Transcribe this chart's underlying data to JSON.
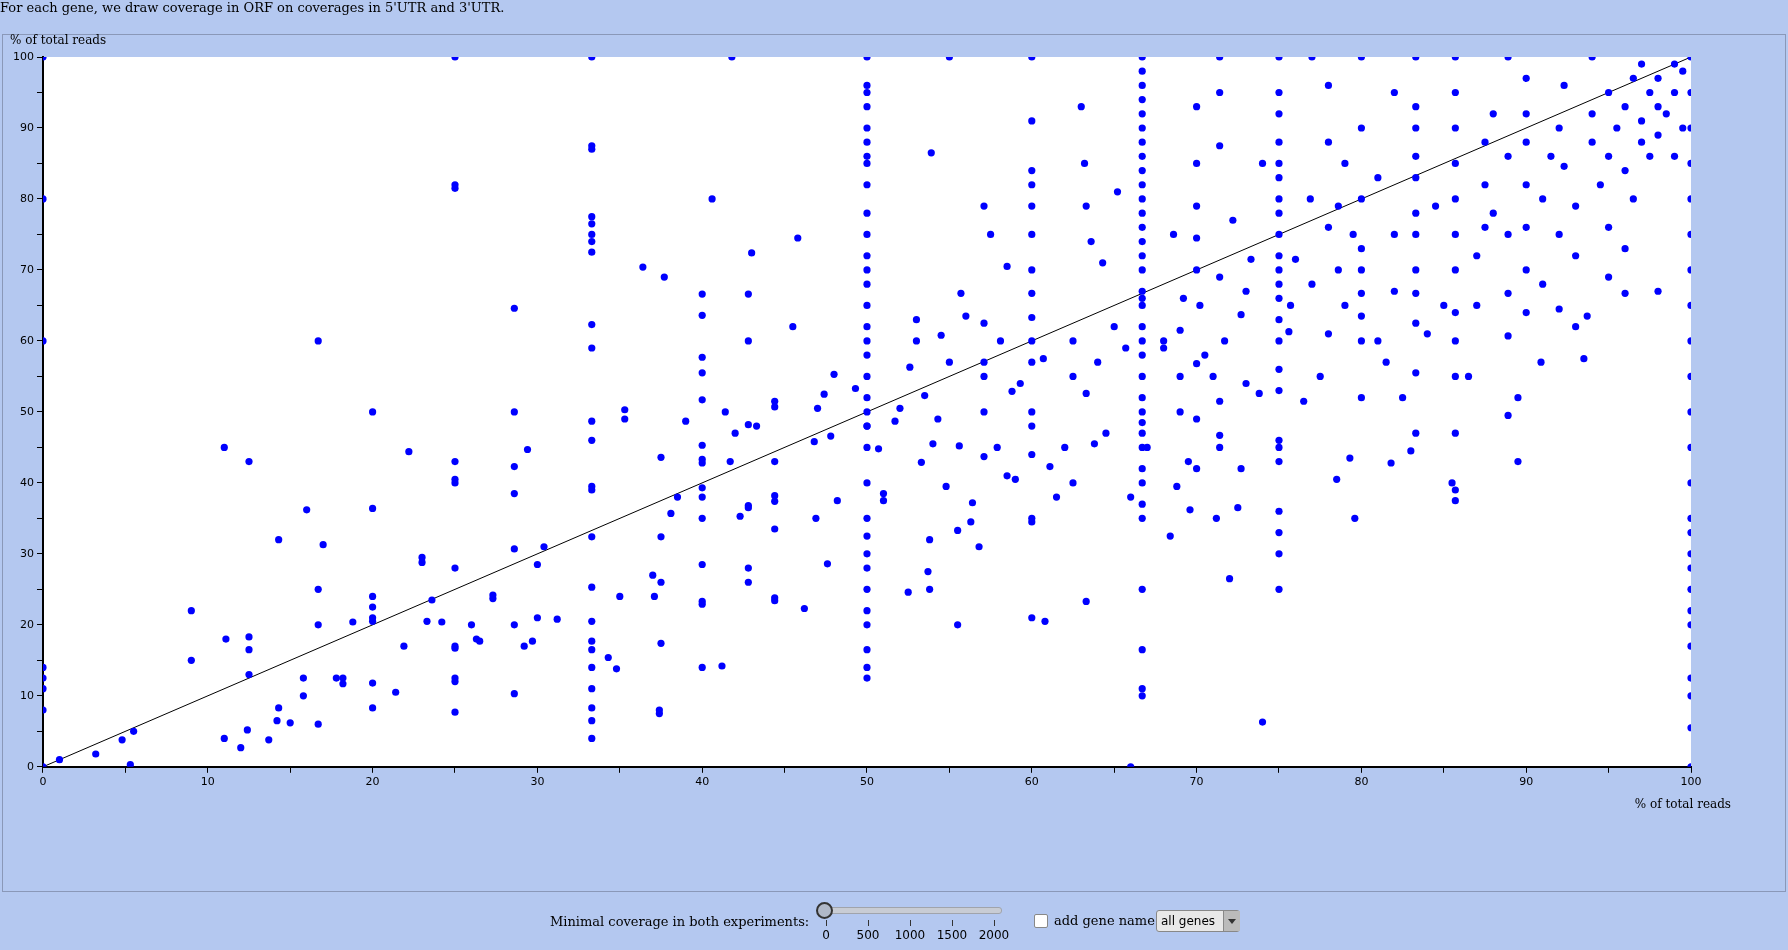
{
  "chart_data": {
    "type": "scatter",
    "title": "For each gene, we draw coverage in ORF on coverages in 5'UTR and 3'UTR.",
    "xlabel": "% of total reads",
    "ylabel": "% of total reads",
    "xlim": [
      0,
      100
    ],
    "ylim": [
      0,
      100
    ],
    "xticks": [
      0,
      {
        "value": 5,
        "label": null
      },
      10,
      {
        "value": 15,
        "label": null
      },
      20,
      {
        "value": 25,
        "label": null
      },
      30,
      {
        "value": 35,
        "label": null
      },
      40,
      {
        "value": 45,
        "label": null
      },
      50,
      {
        "value": 55,
        "label": null
      },
      60,
      {
        "value": 65,
        "label": null
      },
      70,
      {
        "value": 75,
        "label": null
      },
      80,
      {
        "value": 85,
        "label": null
      },
      90,
      {
        "value": 95,
        "label": null
      },
      100
    ],
    "yticks": [
      0,
      {
        "value": 5,
        "label": null
      },
      10,
      {
        "value": 15,
        "label": null
      },
      20,
      {
        "value": 25,
        "label": null
      },
      30,
      {
        "value": 35,
        "label": null
      },
      40,
      {
        "value": 45,
        "label": null
      },
      50,
      {
        "value": 55,
        "label": null
      },
      60,
      {
        "value": 65,
        "label": null
      },
      70,
      {
        "value": 75,
        "label": null
      },
      80,
      {
        "value": 85,
        "label": null
      },
      90,
      {
        "value": 95,
        "label": null
      },
      100
    ],
    "grid": false,
    "legend": false,
    "marker": "circle",
    "annotations": [
      "Minimal coverage in both experiments:",
      "0",
      "500",
      "1000",
      "1500",
      "2000",
      "add gene name",
      "all genes"
    ],
    "series": [
      {
        "color": "#0000ff",
        "x": [
          0,
          0,
          0,
          0,
          0,
          0,
          0,
          0,
          1,
          3.2,
          4.8,
          5.5,
          5.3,
          9,
          9,
          11,
          11.1,
          11,
          12,
          12.4,
          12.5,
          12.5,
          12.5,
          12.5,
          13.7,
          14.2,
          14.3,
          14.3,
          15,
          15.8,
          15.8,
          16,
          16.7,
          16.7,
          16.7,
          16.7,
          17,
          17.8,
          18.2,
          18.2,
          18.8,
          20,
          20,
          20,
          20,
          20,
          20,
          20,
          20,
          21.4,
          21.9,
          22.2,
          23,
          23,
          23.3,
          23.6,
          24.2,
          25,
          25,
          25,
          25,
          25,
          25,
          25,
          25,
          25,
          25,
          25,
          25,
          26,
          26.3,
          26.5,
          27.3,
          27.3,
          28.6,
          28.6,
          28.6,
          28.6,
          28.6,
          28.6,
          28.6,
          29.2,
          29.4,
          29.7,
          30,
          30,
          30.4,
          31.2,
          33.3,
          33.3,
          33.3,
          33.3,
          33.3,
          33.3,
          33.3,
          33.3,
          33.3,
          33.3,
          33.3,
          33.3,
          33.3,
          33.3,
          33.3,
          33.3,
          33.3,
          33.3,
          33.3,
          33.3,
          33.3,
          33.3,
          33.3,
          33.3,
          34.3,
          34.8,
          35,
          35.3,
          35.3,
          36.4,
          37.4,
          37.4,
          37,
          37.1,
          37.5,
          37.5,
          37.5,
          37.5,
          37.7,
          38.1,
          38.5,
          39,
          40,
          40,
          40,
          40,
          40,
          40,
          40,
          40,
          40,
          40,
          40,
          40,
          40,
          40,
          40,
          40.6,
          41.2,
          41.4,
          41.7,
          41.8,
          42,
          42.3,
          42.8,
          42.8,
          42.8,
          42.8,
          42.8,
          42.8,
          42.8,
          43,
          43.3,
          44.4,
          44.4,
          44.4,
          44.4,
          44.4,
          44.4,
          44.4,
          44.4,
          45.5,
          45.8,
          46.2,
          46.8,
          46.9,
          47,
          47.4,
          47.6,
          47.8,
          48,
          48.2,
          49.3,
          50,
          50,
          50,
          50,
          50,
          50,
          50,
          50,
          50,
          50,
          50,
          50,
          50,
          50,
          50,
          50,
          50,
          50,
          50,
          50,
          50,
          50,
          50,
          50,
          50,
          50,
          50,
          50,
          50,
          50,
          50,
          50,
          50,
          50,
          50,
          50.7,
          51,
          51,
          51.7,
          52,
          52.5,
          52.6,
          53,
          53,
          53.3,
          53.5,
          53.7,
          53.8,
          53.8,
          53.9,
          54,
          54.3,
          54.5,
          54.8,
          55,
          55,
          55.5,
          55.5,
          55.6,
          55.7,
          56,
          56.3,
          56.4,
          56.8,
          57.1,
          57.1,
          57.1,
          57.1,
          57.1,
          57.1,
          57.5,
          57.9,
          58.1,
          58.5,
          58.5,
          58.8,
          59,
          59.3,
          60,
          60,
          60,
          60,
          60,
          60,
          60,
          60,
          60,
          60,
          60,
          60,
          60,
          60,
          60,
          60,
          60,
          60.7,
          60.8,
          61.1,
          61.5,
          62,
          62.5,
          62.5,
          62.5,
          63,
          63.2,
          63.3,
          63.3,
          63.3,
          63.6,
          63.8,
          64,
          64.3,
          64.5,
          65,
          65.2,
          65.7,
          66,
          66,
          66.7,
          66.7,
          66.7,
          66.7,
          66.7,
          66.7,
          66.7,
          66.7,
          66.7,
          66.7,
          66.7,
          66.7,
          66.7,
          66.7,
          66.7,
          66.7,
          66.7,
          66.7,
          66.7,
          66.7,
          66.7,
          66.7,
          66.7,
          66.7,
          66.7,
          66.7,
          66.7,
          66.7,
          66.7,
          66.7,
          66.7,
          66.7,
          66.7,
          66.7,
          66.7,
          66.7,
          67,
          68,
          68,
          68.4,
          68.6,
          68.8,
          69,
          69,
          69,
          69.2,
          69.5,
          69.6,
          70,
          70,
          70,
          70,
          70,
          70,
          70,
          70,
          70.2,
          70.5,
          71,
          71.2,
          71.4,
          71.4,
          71.4,
          71.4,
          71.4,
          71.4,
          71.4,
          71.7,
          72,
          72.2,
          72.5,
          72.7,
          72.7,
          73,
          73,
          73.3,
          73.8,
          74,
          74,
          75,
          75,
          75,
          75,
          75,
          75,
          75,
          75,
          75,
          75,
          75,
          75,
          75,
          75,
          75,
          75,
          75,
          75,
          75,
          75,
          75,
          75,
          75,
          75,
          75.6,
          75.7,
          76,
          76.5,
          76.9,
          77,
          77,
          77.5,
          78,
          78,
          78,
          78,
          78.5,
          78.6,
          78.6,
          79,
          79,
          79.3,
          79.5,
          79.6,
          80,
          80,
          80,
          80,
          80,
          80,
          80,
          80,
          80,
          81,
          81,
          81.5,
          81.8,
          82,
          82,
          82,
          82.5,
          83,
          83.3,
          83.3,
          83.3,
          83.3,
          83.3,
          83.3,
          83.3,
          83.3,
          83.3,
          83.3,
          83.3,
          83.3,
          84,
          84.5,
          85,
          85.5,
          85.7,
          85.7,
          85.7,
          85.7,
          85.7,
          85.7,
          85.7,
          85.7,
          85.7,
          85.7,
          85.7,
          85.7,
          85.7,
          86.5,
          87,
          87,
          87.5,
          87.5,
          87.5,
          88,
          88,
          88.9,
          88.9,
          88.9,
          88.9,
          88.9,
          88.9,
          89.5,
          89.5,
          90,
          90,
          90,
          90,
          90,
          90,
          90,
          90.9,
          91,
          91,
          91.5,
          92,
          92,
          92,
          92.3,
          92.3,
          93,
          93,
          93,
          93.5,
          93.7,
          94,
          94,
          94,
          94.5,
          95,
          95,
          95,
          95,
          95.5,
          96,
          96,
          96,
          96,
          96.5,
          96.5,
          97,
          97,
          97,
          97.5,
          97.5,
          98,
          98,
          98,
          98,
          98.5,
          99,
          99,
          99,
          99.5,
          99.5,
          100,
          100,
          100,
          100,
          100,
          100,
          100,
          100,
          100,
          100,
          100,
          100,
          100,
          100,
          100,
          100,
          100,
          100,
          100,
          100,
          100,
          100,
          100,
          100,
          100
        ],
        "values": [
          0,
          8,
          11,
          12.5,
          14,
          60,
          80,
          100,
          1,
          1.8,
          3.8,
          5,
          0.3,
          15,
          22,
          4,
          18,
          45,
          2.7,
          5.2,
          13,
          16.5,
          18.3,
          43,
          3.8,
          6.5,
          8.3,
          32,
          6.2,
          10,
          12.5,
          36.2,
          6,
          20,
          25,
          60,
          31.3,
          12.5,
          11.7,
          12.5,
          20.4,
          8.3,
          11.8,
          20.5,
          21,
          22.5,
          24,
          36.4,
          50,
          10.5,
          17,
          44.4,
          28.8,
          29.5,
          20.5,
          23.5,
          20.4,
          7.7,
          12,
          12.5,
          16.7,
          17,
          28,
          40,
          40.5,
          43,
          81.5,
          82,
          100,
          20,
          18,
          17.7,
          23.7,
          24.2,
          10.3,
          20,
          30.7,
          38.5,
          42.3,
          50,
          64.6,
          17,
          44.7,
          17.7,
          21,
          28.5,
          31,
          20.8,
          4,
          6.5,
          8.3,
          11,
          14,
          16.5,
          17.7,
          20.5,
          25.3,
          32.4,
          39,
          39.5,
          46,
          48.7,
          59,
          62.3,
          72.5,
          74,
          75,
          76.5,
          77.5,
          87,
          87.5,
          100,
          15.4,
          13.8,
          24,
          49,
          50.3,
          70.4,
          7.5,
          8,
          27,
          24,
          43.6,
          17.4,
          26,
          32.4,
          69,
          35.7,
          38,
          48.7,
          14,
          22.9,
          23.3,
          28.5,
          35,
          38,
          39.3,
          42.8,
          43.3,
          45.3,
          51.7,
          55.5,
          57.7,
          63.6,
          66.6,
          80,
          14.2,
          50,
          43,
          100,
          47,
          35.3,
          26,
          36.5,
          36.8,
          28,
          48.2,
          60,
          66.6,
          72.4,
          48,
          33.5,
          23.4,
          23.8,
          37.4,
          38.2,
          43,
          50.7,
          51.5,
          62,
          74.5,
          22.3,
          45.8,
          35,
          50.5,
          52.5,
          28.6,
          46.6,
          55.3,
          37.5,
          53.3,
          48,
          12.5,
          14,
          16.5,
          20,
          22,
          25,
          28,
          30,
          32.5,
          35,
          40,
          45,
          48,
          50,
          52,
          55,
          58,
          60,
          62,
          65,
          68,
          70,
          72,
          75,
          78,
          82,
          85,
          86,
          88,
          90,
          93,
          95,
          96,
          100,
          44.8,
          37.5,
          38.5,
          48.7,
          50.5,
          24.6,
          56.3,
          60,
          63,
          42.9,
          52.3,
          27.5,
          25,
          32,
          86.5,
          45.5,
          49,
          60.8,
          39.5,
          57,
          100,
          20,
          33.3,
          45.2,
          66.7,
          63.5,
          34.5,
          37.2,
          31,
          43.7,
          50,
          55,
          57,
          62.5,
          79,
          75,
          45,
          60,
          41,
          70.5,
          52.9,
          40.5,
          54,
          21,
          35,
          44,
          48,
          50,
          57,
          60,
          63.3,
          66.7,
          70,
          75,
          79,
          82,
          84,
          91,
          100,
          34.5,
          57.5,
          20.5,
          42.3,
          38,
          45,
          55,
          60,
          40,
          93,
          85,
          79,
          52.6,
          23.3,
          74,
          45.5,
          57,
          71,
          47,
          62,
          81,
          59,
          38,
          0,
          10,
          11,
          16.5,
          25,
          35,
          37,
          40,
          42,
          45,
          47,
          50,
          52,
          55,
          58,
          60,
          62,
          65,
          66,
          67,
          70,
          72,
          74,
          76,
          78,
          80,
          82,
          84,
          86,
          88,
          90,
          92,
          94,
          96,
          98,
          100,
          48.5,
          45,
          60,
          59,
          32.5,
          75,
          39.5,
          50,
          61.5,
          55,
          66,
          43,
          36.2,
          42,
          56.8,
          70,
          74.5,
          79,
          85,
          93,
          49,
          65,
          58,
          55,
          35,
          46.7,
          51.5,
          69,
          87.5,
          95,
          100,
          45,
          60,
          26.5,
          77,
          36.5,
          42,
          63.7,
          67,
          54,
          71.5,
          52.6,
          85,
          6.3,
          25,
          30,
          33,
          36,
          43,
          46,
          53,
          56,
          60,
          63,
          66,
          68,
          70,
          72,
          75,
          78,
          80,
          83,
          85,
          88,
          92,
          95,
          100,
          45,
          61.3,
          65,
          71.5,
          51.5,
          80,
          100,
          68,
          55,
          76,
          88,
          96,
          61,
          40.5,
          70,
          79,
          85,
          65,
          43.5,
          75,
          35,
          60,
          63.5,
          66.7,
          70,
          73,
          80,
          90,
          100,
          52,
          60,
          83,
          57,
          42.8,
          75,
          95,
          67,
          52,
          44.5,
          47,
          55.5,
          62.5,
          66.7,
          70,
          75,
          78,
          83,
          86,
          90,
          93,
          100,
          61,
          79,
          65,
          40,
          37.5,
          39,
          47,
          55,
          60,
          64,
          70,
          75,
          80,
          85,
          90,
          95,
          100,
          55,
          65,
          72,
          76,
          82,
          88,
          78,
          92,
          49.5,
          60.7,
          66.7,
          75,
          86,
          100,
          43,
          52,
          64,
          70,
          76,
          82,
          88,
          92,
          97,
          57,
          68,
          80,
          86,
          90,
          75,
          64.5,
          84.6,
          96,
          62,
          72,
          79,
          57.5,
          63.5,
          88,
          92,
          100,
          82,
          69,
          76,
          86,
          95,
          90,
          66.7,
          73,
          84,
          93,
          97,
          80,
          88,
          91,
          99,
          86,
          95,
          67,
          89,
          93,
          97,
          92,
          86,
          95,
          99,
          90,
          98,
          0,
          5.5,
          10,
          12.5,
          17,
          20,
          22,
          25,
          28,
          30,
          33,
          35,
          40,
          45,
          50,
          55,
          60,
          65,
          70,
          75,
          80,
          85,
          90,
          95,
          100
        ]
      },
      {
        "type": "line",
        "color": "#000000",
        "marker": "none",
        "x": [
          0,
          100
        ],
        "values": [
          0,
          100
        ]
      }
    ]
  }
}
